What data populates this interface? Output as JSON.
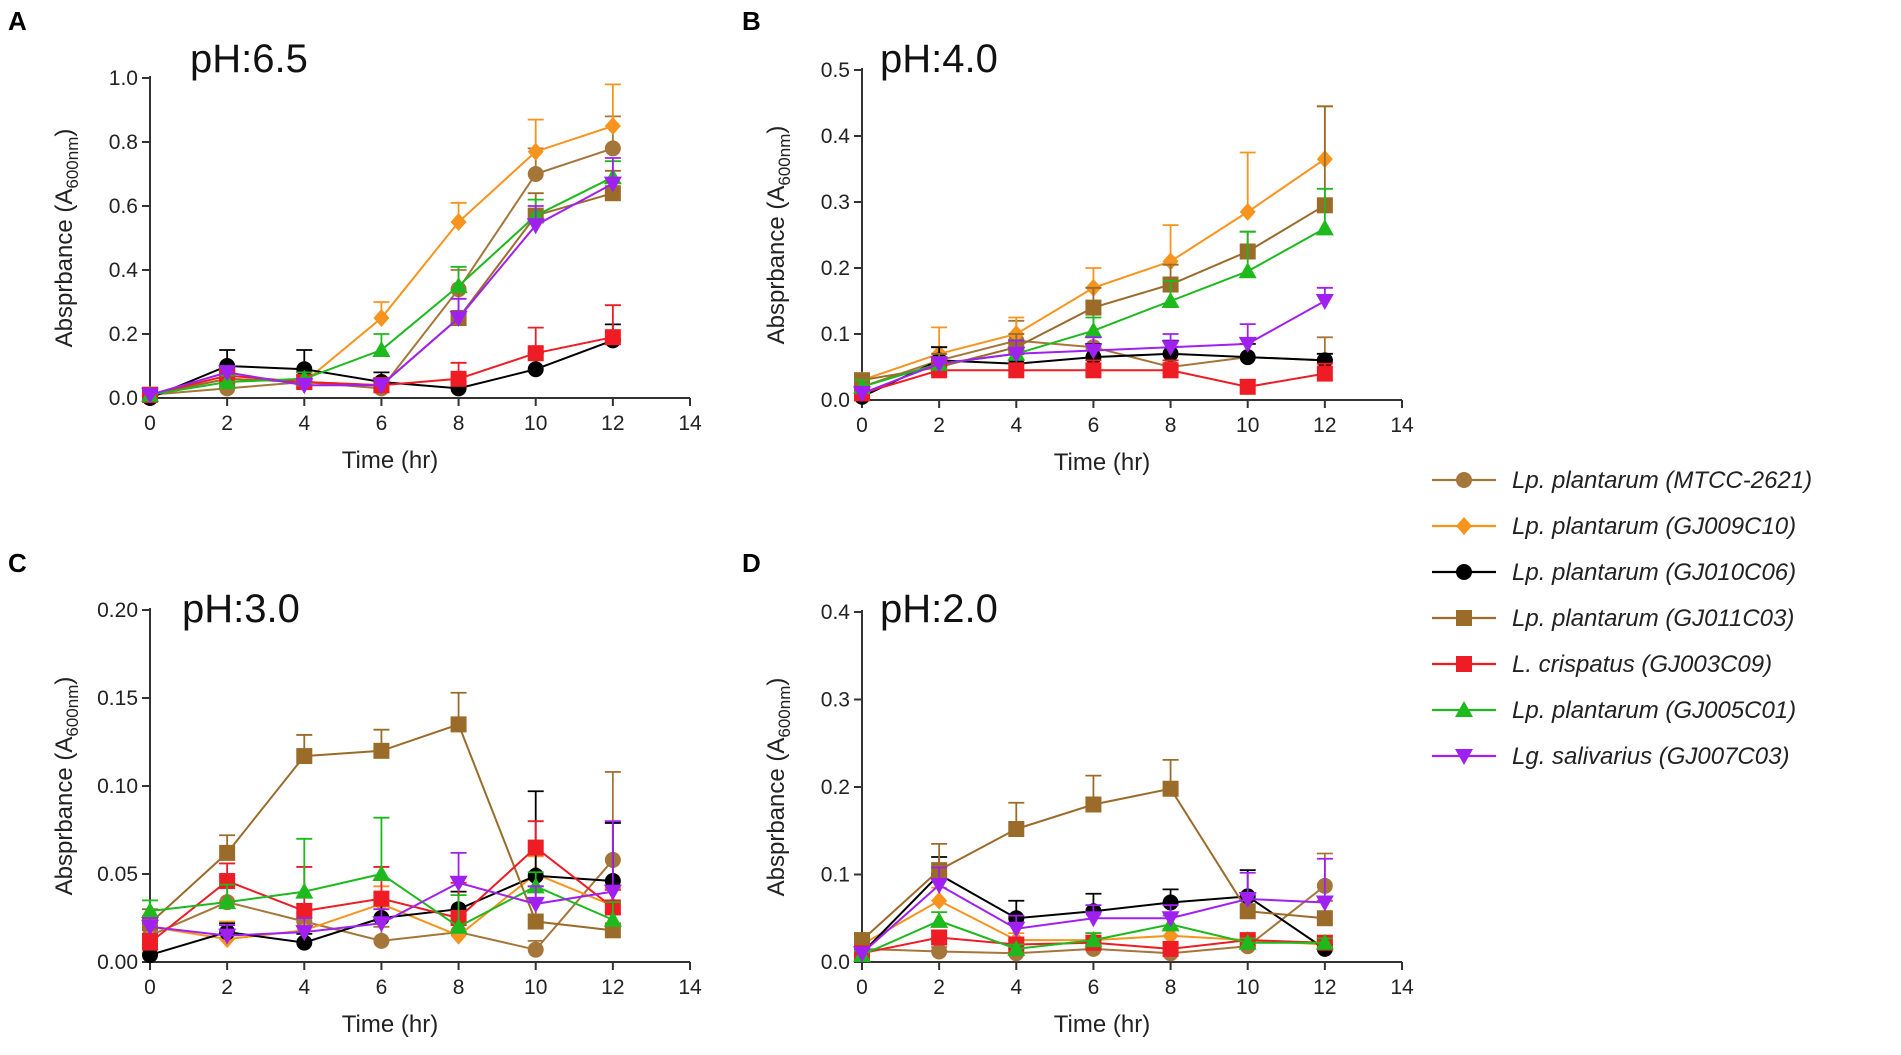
{
  "figure": {
    "legend": [
      {
        "id": "mtcc2621",
        "label": "Lp. plantarum (MTCC-2621)",
        "color": "#a5763a",
        "marker": "circle"
      },
      {
        "id": "gj009c10",
        "label": "Lp. plantarum (GJ009C10)",
        "color": "#f7941d",
        "marker": "diamond"
      },
      {
        "id": "gj010c06",
        "label": "Lp. plantarum (GJ010C06)",
        "color": "#000000",
        "marker": "circle"
      },
      {
        "id": "gj011c03",
        "label": "Lp. plantarum (GJ011C03)",
        "color": "#9b6b2a",
        "marker": "square"
      },
      {
        "id": "gj003c09",
        "label": "L. crispatus (GJ003C09)",
        "color": "#ee1c24",
        "marker": "square"
      },
      {
        "id": "gj005c01",
        "label": "Lp. plantarum (GJ005C01)",
        "color": "#1db91d",
        "marker": "triangle-up"
      },
      {
        "id": "gj007c03",
        "label": "Lg. salivarius (GJ007C03)",
        "color": "#a020f0",
        "marker": "triangle-down"
      }
    ]
  },
  "chart_data": [
    {
      "panel": "A",
      "type": "line",
      "title": "pH:6.5",
      "xlabel": "Time (hr)",
      "ylabel_main": "Absprbance (A",
      "ylabel_sub": "600nm",
      "ylabel_end": ")",
      "x": [
        0,
        2,
        4,
        6,
        8,
        10,
        12
      ],
      "xticks": [
        "0",
        "2",
        "4",
        "6",
        "8",
        "10",
        "12",
        "14"
      ],
      "xlim": [
        0,
        14
      ],
      "yticks": [
        "0.0",
        "0.2",
        "0.4",
        "0.6",
        "0.8",
        "1.0"
      ],
      "ylim": [
        0,
        1.0
      ],
      "series": [
        {
          "id": "mtcc2621",
          "values": [
            0.01,
            0.03,
            0.05,
            0.03,
            0.34,
            0.7,
            0.78
          ],
          "err": [
            0.01,
            0.02,
            0.03,
            0.02,
            0.06,
            0.08,
            0.1
          ]
        },
        {
          "id": "gj009c10",
          "values": [
            0.01,
            0.06,
            0.05,
            0.25,
            0.55,
            0.77,
            0.85
          ],
          "err": [
            0.01,
            0.02,
            0.02,
            0.05,
            0.06,
            0.1,
            0.13
          ]
        },
        {
          "id": "gj010c06",
          "values": [
            0.0,
            0.1,
            0.09,
            0.05,
            0.03,
            0.09,
            0.18
          ],
          "err": [
            0.01,
            0.05,
            0.06,
            0.03,
            0.02,
            0.05,
            0.05
          ]
        },
        {
          "id": "gj011c03",
          "values": [
            0.01,
            0.06,
            0.05,
            0.04,
            0.25,
            0.57,
            0.64
          ],
          "err": [
            0.01,
            0.02,
            0.02,
            0.02,
            0.08,
            0.07,
            0.07
          ]
        },
        {
          "id": "gj003c09",
          "values": [
            0.01,
            0.07,
            0.05,
            0.04,
            0.06,
            0.14,
            0.19
          ],
          "err": [
            0.01,
            0.02,
            0.03,
            0.02,
            0.05,
            0.08,
            0.1
          ]
        },
        {
          "id": "gj005c01",
          "values": [
            0.01,
            0.05,
            0.06,
            0.15,
            0.35,
            0.57,
            0.69
          ],
          "err": [
            0.01,
            0.02,
            0.02,
            0.05,
            0.06,
            0.05,
            0.05
          ]
        },
        {
          "id": "gj007c03",
          "values": [
            0.01,
            0.08,
            0.04,
            0.04,
            0.25,
            0.54,
            0.67
          ],
          "err": [
            0.01,
            0.02,
            0.02,
            0.02,
            0.06,
            0.06,
            0.08
          ]
        }
      ]
    },
    {
      "panel": "B",
      "type": "line",
      "title": "pH:4.0",
      "xlabel": "Time (hr)",
      "ylabel_main": "Absprbance (A",
      "ylabel_sub": "600nm",
      "ylabel_end": ")",
      "x": [
        0,
        2,
        4,
        6,
        8,
        10,
        12
      ],
      "xticks": [
        "0",
        "2",
        "4",
        "6",
        "8",
        "10",
        "12",
        "14"
      ],
      "xlim": [
        0,
        14
      ],
      "yticks": [
        "0.0",
        "0.1",
        "0.2",
        "0.3",
        "0.4",
        "0.5"
      ],
      "ylim": [
        0,
        0.5
      ],
      "series": [
        {
          "id": "mtcc2621",
          "values": [
            0.02,
            0.06,
            0.09,
            0.08,
            0.05,
            0.065,
            0.06
          ],
          "err": [
            0.01,
            0.02,
            0.03,
            0.07,
            0.02,
            0.02,
            0.035
          ]
        },
        {
          "id": "gj009c10",
          "values": [
            0.03,
            0.07,
            0.1,
            0.17,
            0.21,
            0.285,
            0.365
          ],
          "err": [
            0.01,
            0.04,
            0.025,
            0.03,
            0.055,
            0.09,
            0.08
          ]
        },
        {
          "id": "gj010c06",
          "values": [
            0.005,
            0.06,
            0.055,
            0.065,
            0.07,
            0.065,
            0.06
          ],
          "err": [
            0.005,
            0.02,
            0.02,
            0.02,
            0.02,
            0.02,
            0.01
          ]
        },
        {
          "id": "gj011c03",
          "values": [
            0.03,
            0.05,
            0.08,
            0.14,
            0.175,
            0.225,
            0.295
          ],
          "err": [
            0.01,
            0.02,
            0.02,
            0.03,
            0.03,
            0.03,
            0.15
          ]
        },
        {
          "id": "gj003c09",
          "values": [
            0.01,
            0.045,
            0.045,
            0.045,
            0.045,
            0.02,
            0.04
          ],
          "err": [
            0.01,
            0.015,
            0.01,
            0.015,
            0.015,
            0.01,
            0.015
          ]
        },
        {
          "id": "gj005c01",
          "values": [
            0.02,
            0.055,
            0.07,
            0.105,
            0.15,
            0.195,
            0.26
          ],
          "err": [
            0.01,
            0.01,
            0.02,
            0.02,
            0.03,
            0.06,
            0.06
          ]
        },
        {
          "id": "gj007c03",
          "values": [
            0.01,
            0.055,
            0.07,
            0.075,
            0.08,
            0.085,
            0.15
          ],
          "err": [
            0.01,
            0.01,
            0.02,
            0.02,
            0.02,
            0.03,
            0.02
          ]
        }
      ]
    },
    {
      "panel": "C",
      "type": "line",
      "title": "pH:3.0",
      "xlabel": "Time (hr)",
      "ylabel_main": "Absprbance (A",
      "ylabel_sub": "600nm",
      "ylabel_end": ")",
      "x": [
        0,
        2,
        4,
        6,
        8,
        10,
        12
      ],
      "xticks": [
        "0",
        "2",
        "4",
        "6",
        "8",
        "10",
        "12",
        "14"
      ],
      "xlim": [
        0,
        14
      ],
      "yticks": [
        "0.00",
        "0.05",
        "0.10",
        "0.15",
        "0.20"
      ],
      "ylim": [
        0,
        0.2
      ],
      "series": [
        {
          "id": "mtcc2621",
          "values": [
            0.015,
            0.034,
            0.023,
            0.012,
            0.017,
            0.007,
            0.058
          ],
          "err": [
            0.005,
            0.01,
            0.01,
            0.008,
            0.01,
            0.005,
            0.05
          ]
        },
        {
          "id": "gj009c10",
          "values": [
            0.02,
            0.013,
            0.018,
            0.033,
            0.015,
            0.05,
            0.032
          ],
          "err": [
            0.005,
            0.01,
            0.01,
            0.01,
            0.01,
            0.01,
            0.01
          ]
        },
        {
          "id": "gj010c06",
          "values": [
            0.004,
            0.017,
            0.011,
            0.025,
            0.03,
            0.049,
            0.046
          ],
          "err": [
            0.003,
            0.005,
            0.005,
            0.01,
            0.01,
            0.048,
            0.033
          ]
        },
        {
          "id": "gj011c03",
          "values": [
            0.022,
            0.062,
            0.117,
            0.12,
            0.135,
            0.023,
            0.018
          ],
          "err": [
            0.008,
            0.01,
            0.012,
            0.012,
            0.018,
            0.02,
            0.01
          ]
        },
        {
          "id": "gj003c09",
          "values": [
            0.011,
            0.046,
            0.029,
            0.036,
            0.025,
            0.065,
            0.031
          ],
          "err": [
            0.005,
            0.01,
            0.025,
            0.018,
            0.02,
            0.015,
            0.01
          ]
        },
        {
          "id": "gj005c01",
          "values": [
            0.029,
            0.034,
            0.04,
            0.05,
            0.02,
            0.043,
            0.024
          ],
          "err": [
            0.006,
            0.01,
            0.03,
            0.032,
            0.018,
            0.008,
            0.01
          ]
        },
        {
          "id": "gj007c03",
          "values": [
            0.02,
            0.015,
            0.017,
            0.022,
            0.045,
            0.033,
            0.04
          ],
          "err": [
            0.005,
            0.006,
            0.008,
            0.008,
            0.017,
            0.01,
            0.04
          ]
        }
      ]
    },
    {
      "panel": "D",
      "type": "line",
      "title": "pH:2.0",
      "xlabel": "Time (hr)",
      "ylabel_main": "Absprbance (A",
      "ylabel_sub": "600nm",
      "ylabel_end": ")",
      "x": [
        0,
        2,
        4,
        6,
        8,
        10,
        12
      ],
      "xticks": [
        "0",
        "2",
        "4",
        "6",
        "8",
        "10",
        "12",
        "14"
      ],
      "xlim": [
        0,
        14
      ],
      "yticks": [
        "0.0",
        "0.1",
        "0.2",
        "0.3",
        "0.4"
      ],
      "ylim": [
        0,
        0.4
      ],
      "series": [
        {
          "id": "mtcc2621",
          "values": [
            0.015,
            0.012,
            0.01,
            0.015,
            0.01,
            0.018,
            0.087
          ],
          "err": [
            0.005,
            0.005,
            0.005,
            0.005,
            0.005,
            0.005,
            0.037
          ]
        },
        {
          "id": "gj009c10",
          "values": [
            0.02,
            0.07,
            0.025,
            0.025,
            0.03,
            0.025,
            0.02
          ],
          "err": [
            0.005,
            0.015,
            0.008,
            0.008,
            0.008,
            0.008,
            0.005
          ]
        },
        {
          "id": "gj010c06",
          "values": [
            0.01,
            0.1,
            0.05,
            0.058,
            0.068,
            0.075,
            0.015
          ],
          "err": [
            0.005,
            0.02,
            0.02,
            0.02,
            0.015,
            0.03,
            0.005
          ]
        },
        {
          "id": "gj011c03",
          "values": [
            0.025,
            0.105,
            0.152,
            0.18,
            0.198,
            0.058,
            0.05
          ],
          "err": [
            0.008,
            0.03,
            0.03,
            0.033,
            0.033,
            0.02,
            0.02
          ]
        },
        {
          "id": "gj003c09",
          "values": [
            0.01,
            0.028,
            0.02,
            0.022,
            0.015,
            0.025,
            0.022
          ],
          "err": [
            0.005,
            0.008,
            0.005,
            0.008,
            0.005,
            0.005,
            0.005
          ]
        },
        {
          "id": "gj005c01",
          "values": [
            0.008,
            0.047,
            0.015,
            0.025,
            0.043,
            0.022,
            0.022
          ],
          "err": [
            0.005,
            0.01,
            0.005,
            0.008,
            0.01,
            0.005,
            0.005
          ]
        },
        {
          "id": "gj007c03",
          "values": [
            0.01,
            0.088,
            0.038,
            0.05,
            0.05,
            0.072,
            0.068
          ],
          "err": [
            0.005,
            0.02,
            0.015,
            0.015,
            0.015,
            0.03,
            0.05
          ]
        }
      ]
    }
  ]
}
